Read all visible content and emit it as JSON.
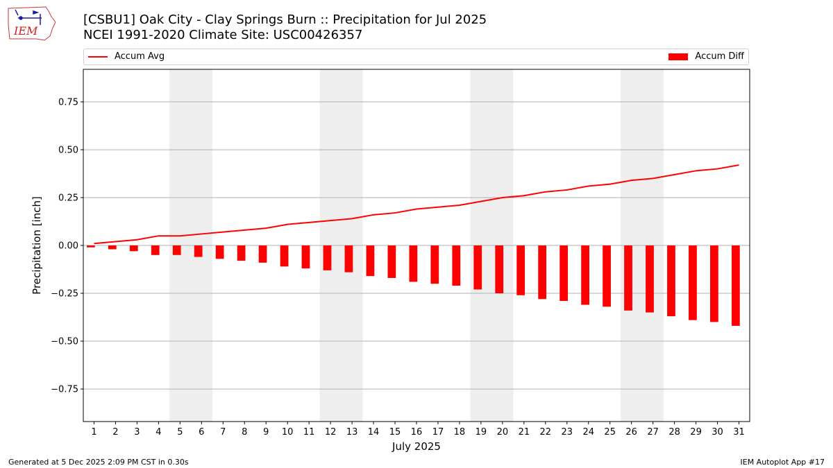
{
  "header": {
    "title": "[CSBU1] Oak City - Clay Springs Burn :: Precipitation for Jul 2025",
    "subtitle": "NCEI 1991-2020 Climate Site: USC00426357"
  },
  "logo": {
    "text": "IEM",
    "icon": "iem-iowa-logo"
  },
  "legend": {
    "line_label": "Accum Avg",
    "bar_label": "Accum Diff",
    "placement": "top-spanning"
  },
  "footer": {
    "left": "Generated at 5 Dec 2025 2:09 PM CST in 0.30s",
    "right": "IEM Autoplot App #17"
  },
  "colors": {
    "series": "#ff0000",
    "weekend_band": "#eeeeee",
    "grid": "#b0b0b0"
  },
  "chart_data": {
    "type": "bar",
    "xlabel": "July 2025",
    "ylabel": "Precipitation [inch]",
    "ylim": [
      -0.92,
      0.92
    ],
    "xlim": [
      0.5,
      31.5
    ],
    "yticks": [
      -0.75,
      -0.5,
      -0.25,
      0.0,
      0.25,
      0.5,
      0.75
    ],
    "ytick_labels": [
      "−0.75",
      "−0.50",
      "−0.25",
      "0.00",
      "0.25",
      "0.50",
      "0.75"
    ],
    "grid": "horizontal",
    "x": [
      1,
      2,
      3,
      4,
      5,
      6,
      7,
      8,
      9,
      10,
      11,
      12,
      13,
      14,
      15,
      16,
      17,
      18,
      19,
      20,
      21,
      22,
      23,
      24,
      25,
      26,
      27,
      28,
      29,
      30,
      31
    ],
    "weekend_bands": [
      [
        5,
        6
      ],
      [
        12,
        13
      ],
      [
        19,
        20
      ],
      [
        26,
        27
      ]
    ],
    "series": [
      {
        "name": "Accum Avg",
        "type": "line",
        "values": [
          0.01,
          0.02,
          0.03,
          0.05,
          0.05,
          0.06,
          0.07,
          0.08,
          0.09,
          0.11,
          0.12,
          0.13,
          0.14,
          0.16,
          0.17,
          0.19,
          0.2,
          0.21,
          0.23,
          0.25,
          0.26,
          0.28,
          0.29,
          0.31,
          0.32,
          0.34,
          0.35,
          0.37,
          0.39,
          0.4,
          0.42
        ]
      },
      {
        "name": "Accum Diff",
        "type": "bar",
        "values": [
          -0.01,
          -0.02,
          -0.03,
          -0.05,
          -0.05,
          -0.06,
          -0.07,
          -0.08,
          -0.09,
          -0.11,
          -0.12,
          -0.13,
          -0.14,
          -0.16,
          -0.17,
          -0.19,
          -0.2,
          -0.21,
          -0.23,
          -0.25,
          -0.26,
          -0.28,
          -0.29,
          -0.31,
          -0.32,
          -0.34,
          -0.35,
          -0.37,
          -0.39,
          -0.4,
          -0.42
        ]
      }
    ]
  }
}
